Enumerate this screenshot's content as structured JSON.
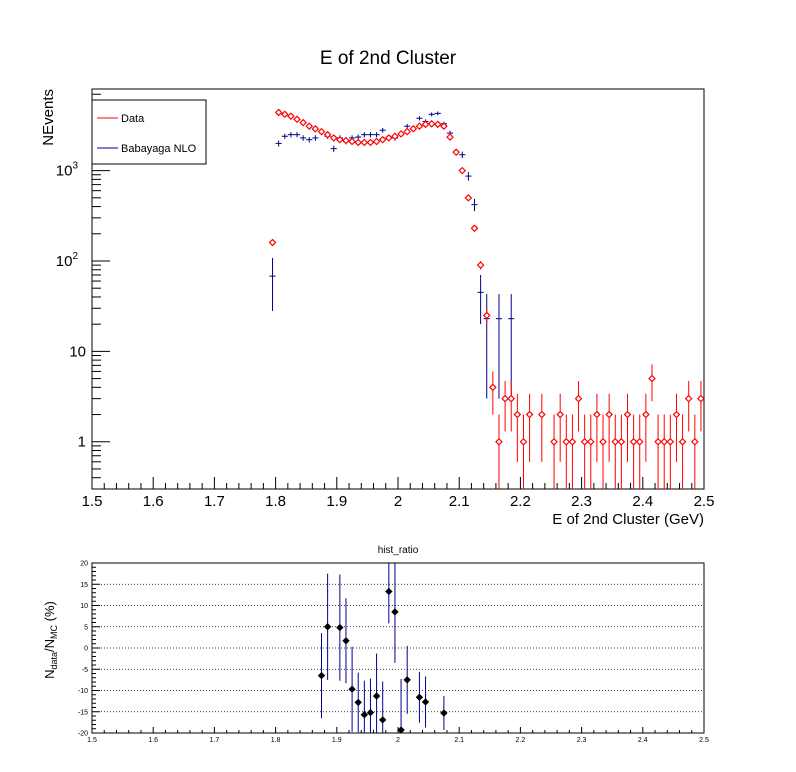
{
  "chart_data": [
    {
      "type": "scatter",
      "title": "E of 2nd Cluster",
      "xlabel": "E of 2nd Cluster (GeV)",
      "ylabel": "NEvents",
      "xlim": [
        1.5,
        2.5
      ],
      "ylim": [
        0.3,
        8000
      ],
      "yscale": "log",
      "grid": false,
      "legend_position": "top-left",
      "x_ticks": [
        "1.5",
        "1.6",
        "1.7",
        "1.8",
        "1.9",
        "2",
        "2.1",
        "2.2",
        "2.3",
        "2.4",
        "2.5"
      ],
      "y_ticks": [
        {
          "value": 1,
          "label": "1",
          "exp": ""
        },
        {
          "value": 10,
          "label": "10",
          "exp": ""
        },
        {
          "value": 100,
          "label": "10",
          "exp": "2"
        },
        {
          "value": 1000,
          "label": "10",
          "exp": "3"
        }
      ],
      "series": [
        {
          "name": "Data",
          "color": "#ff0000",
          "marker": "diamond-open",
          "x": [
            1.795,
            1.805,
            1.815,
            1.825,
            1.835,
            1.845,
            1.855,
            1.865,
            1.875,
            1.885,
            1.895,
            1.905,
            1.915,
            1.925,
            1.935,
            1.945,
            1.955,
            1.965,
            1.975,
            1.985,
            1.995,
            2.005,
            2.015,
            2.025,
            2.035,
            2.045,
            2.055,
            2.065,
            2.075,
            2.085,
            2.095,
            2.105,
            2.115,
            2.125,
            2.135,
            2.145,
            2.155,
            2.165,
            2.175,
            2.185,
            2.195,
            2.205,
            2.215,
            2.235,
            2.255,
            2.265,
            2.275,
            2.285,
            2.295,
            2.305,
            2.315,
            2.325,
            2.335,
            2.345,
            2.355,
            2.365,
            2.375,
            2.385,
            2.395,
            2.405,
            2.415,
            2.425,
            2.435,
            2.445,
            2.455,
            2.465,
            2.475,
            2.485,
            2.495
          ],
          "y": [
            160,
            4400,
            4200,
            4000,
            3700,
            3400,
            3100,
            2900,
            2700,
            2500,
            2300,
            2200,
            2150,
            2100,
            2050,
            2050,
            2050,
            2100,
            2200,
            2300,
            2400,
            2550,
            2700,
            2900,
            3100,
            3250,
            3300,
            3250,
            3100,
            2350,
            1600,
            1000,
            500,
            230,
            90,
            25,
            4,
            1,
            3,
            3,
            2,
            1,
            2,
            2,
            1,
            2,
            1,
            1,
            3,
            1,
            1,
            2,
            1,
            2,
            1,
            1,
            2,
            1,
            1,
            2,
            5,
            1,
            1,
            1,
            2,
            1,
            3,
            1,
            3
          ],
          "yerr": [
            13,
            66,
            65,
            63,
            61,
            58,
            56,
            54,
            52,
            50,
            48,
            47,
            46,
            46,
            45,
            45,
            45,
            46,
            47,
            48,
            49,
            50,
            52,
            54,
            56,
            57,
            57,
            57,
            56,
            48,
            40,
            32,
            22,
            15,
            9.5,
            5,
            2,
            1,
            1.7,
            1.7,
            1.4,
            1,
            1.4,
            1.4,
            1,
            1.4,
            1,
            1,
            1.7,
            1,
            1,
            1.4,
            1,
            1.4,
            1,
            1,
            1.4,
            1,
            1,
            1.4,
            2.2,
            1,
            1,
            1,
            1.4,
            1,
            1.7,
            1,
            1.7
          ]
        },
        {
          "name": "Babayaga NLO",
          "color": "#00008b",
          "marker": "cross",
          "x": [
            1.795,
            1.805,
            1.815,
            1.825,
            1.835,
            1.845,
            1.855,
            1.865,
            1.875,
            1.885,
            1.895,
            1.905,
            1.915,
            1.925,
            1.935,
            1.945,
            1.955,
            1.965,
            1.975,
            1.985,
            1.995,
            2.005,
            2.015,
            2.025,
            2.035,
            2.045,
            2.055,
            2.065,
            2.075,
            2.085,
            2.095,
            2.105,
            2.115,
            2.125,
            2.135,
            2.145,
            2.165,
            2.185
          ],
          "y": [
            68,
            2000,
            2400,
            2500,
            2500,
            2300,
            2200,
            2300,
            2700,
            2400,
            1750,
            2300,
            2100,
            2300,
            2350,
            2500,
            2500,
            2500,
            2800,
            2300,
            2300,
            2500,
            3100,
            2900,
            3800,
            3500,
            4200,
            4300,
            3300,
            2600,
            1600,
            1500,
            870,
            420,
            45,
            23,
            23,
            23
          ],
          "yerr": [
            40,
            150,
            160,
            165,
            165,
            160,
            150,
            160,
            170,
            160,
            140,
            160,
            150,
            160,
            160,
            165,
            165,
            165,
            170,
            160,
            160,
            165,
            180,
            175,
            200,
            190,
            210,
            210,
            185,
            165,
            130,
            125,
            95,
            65,
            25,
            20,
            20,
            20
          ]
        }
      ]
    },
    {
      "type": "scatter",
      "title": "hist_ratio",
      "xlabel": "",
      "ylabel": "N_data/N_MC (%)",
      "ylabel_main": "N",
      "ylabel_sub1": "data",
      "ylabel_mid": "/N",
      "ylabel_sub2": "MC",
      "ylabel_tail": " (%)",
      "xlim": [
        1.5,
        2.5
      ],
      "ylim": [
        -20,
        20
      ],
      "grid": true,
      "x_ticks": [
        "1.5",
        "1.6",
        "1.7",
        "1.8",
        "1.9",
        "2",
        "2.1",
        "2.2",
        "2.3",
        "2.4",
        "2.5"
      ],
      "y_ticks": [
        "20",
        "15",
        "10",
        "5",
        "0",
        "-5",
        "-10",
        "-15",
        "-20"
      ],
      "series": [
        {
          "color": "#000000",
          "marker": "filled-diamond",
          "x": [
            1.875,
            1.885,
            1.905,
            1.915,
            1.925,
            1.935,
            1.945,
            1.955,
            1.965,
            1.975,
            1.985,
            1.995,
            2.005,
            2.015,
            2.035,
            2.045,
            2.075
          ],
          "y": [
            -6.5,
            5,
            4.8,
            1.7,
            -9.7,
            -12.8,
            -15.7,
            -15.2,
            -11.3,
            -16.9,
            13.3,
            8.5,
            -19.3,
            -7.5,
            -11.6,
            -12.7,
            -15.3
          ],
          "yerr": [
            10,
            12.5,
            12.5,
            10,
            10,
            7,
            8,
            8,
            10,
            9,
            7.5,
            12,
            12,
            8,
            6,
            6,
            4
          ]
        }
      ]
    }
  ]
}
